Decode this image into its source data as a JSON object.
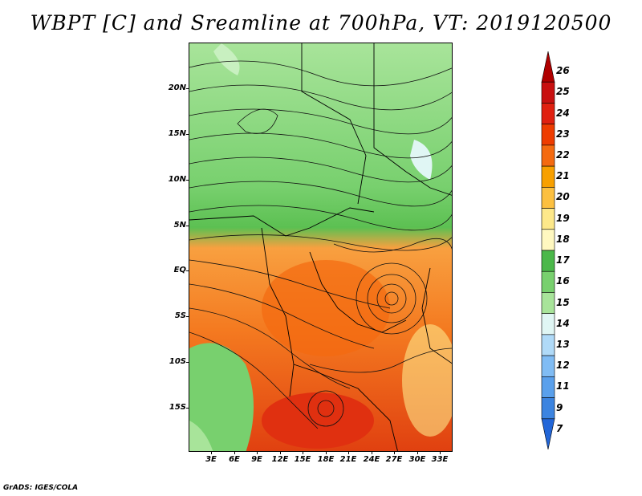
{
  "title": "WBPT [C] and Sreamline at 700hPa, VT: 2019120500",
  "credit": "GrADS: IGES/COLA",
  "map": {
    "lat_labels": [
      "20N",
      "15N",
      "10N",
      "5N",
      "EQ",
      "5S",
      "10S",
      "15S"
    ],
    "lon_labels": [
      "3E",
      "6E",
      "9E",
      "12E",
      "15E",
      "18E",
      "21E",
      "24E",
      "27E",
      "30E",
      "33E"
    ]
  },
  "colorbar": {
    "levels": [
      "26",
      "25",
      "24",
      "23",
      "22",
      "21",
      "20",
      "19",
      "18",
      "17",
      "16",
      "15",
      "14",
      "13",
      "12",
      "11",
      "9",
      "7"
    ],
    "colors": [
      "#b00000",
      "#c81010",
      "#e02010",
      "#ee3c00",
      "#f46a10",
      "#f8a000",
      "#fcc040",
      "#fde88a",
      "#fff8c0",
      "#4bb84a",
      "#78d06e",
      "#a8e49a",
      "#e0f6f4",
      "#b0daf8",
      "#80bcf4",
      "#5aa0ec",
      "#3c84e0",
      "#2266d8"
    ]
  }
}
